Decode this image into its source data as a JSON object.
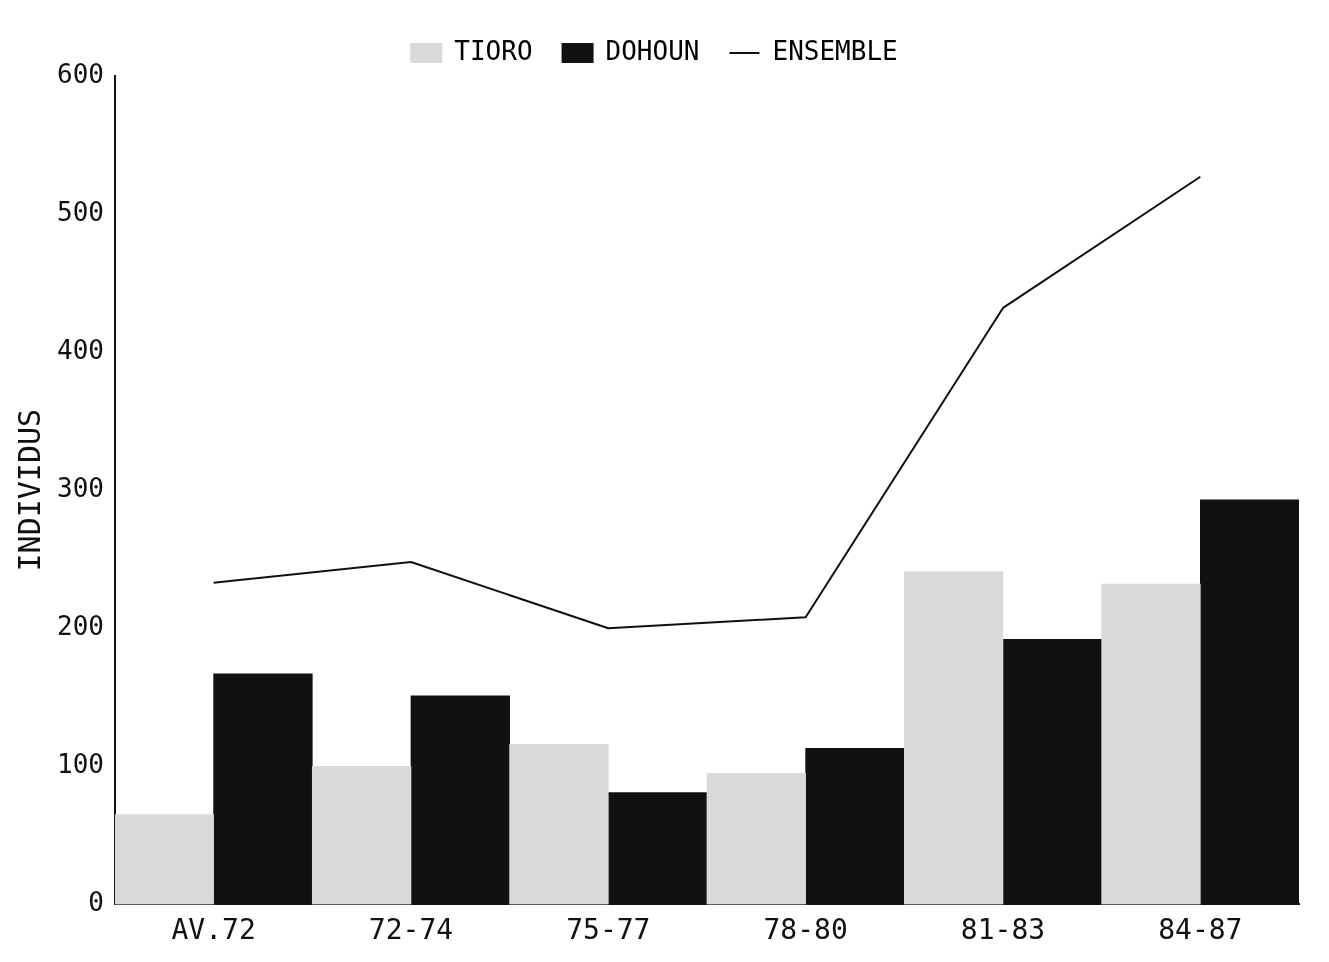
{
  "chart_data": {
    "type": "bar",
    "ylabel": "INDIVIDUS",
    "categories": [
      "AV.72",
      "72-74",
      "75-77",
      "78-80",
      "81-83",
      "84-87"
    ],
    "series": [
      {
        "name": "TIORO",
        "color": "#d9d9d9",
        "values": [
          65,
          100,
          116,
          95,
          241,
          232
        ]
      },
      {
        "name": "DOHOUN",
        "color": "#111111",
        "values": [
          167,
          151,
          81,
          113,
          192,
          293
        ]
      },
      {
        "name": "ENSEMBLE",
        "type": "line",
        "color": "#111111",
        "values": [
          233,
          248,
          200,
          208,
          432,
          527
        ]
      }
    ],
    "ylim": [
      0,
      600
    ],
    "yticks": [
      0,
      100,
      200,
      300,
      400,
      500,
      600
    ],
    "grid": false,
    "legend": "top",
    "marker": "none"
  }
}
